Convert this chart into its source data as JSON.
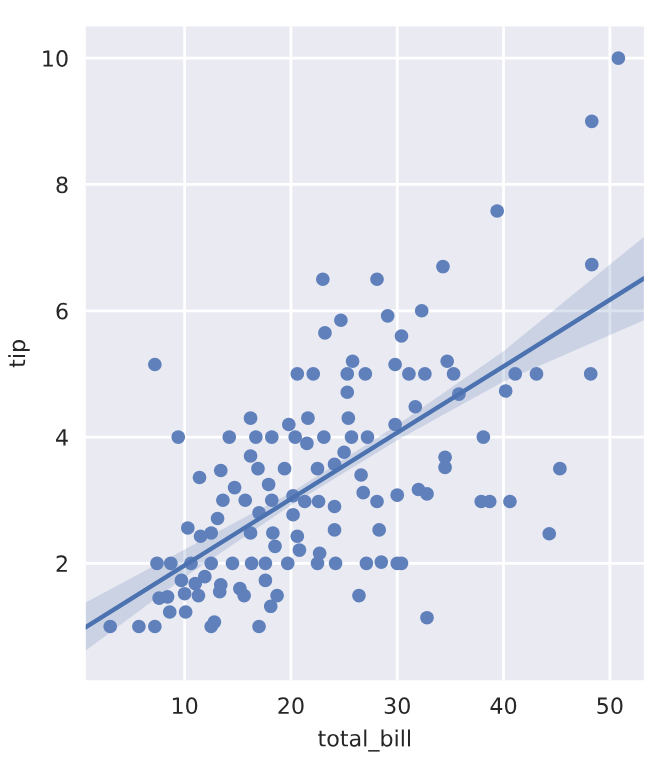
{
  "chart_data": {
    "type": "scatter",
    "xlabel": "total_bill",
    "ylabel": "tip",
    "xlim": [
      0.7,
      53.2
    ],
    "ylim": [
      0.15,
      10.5
    ],
    "xticks": [
      10,
      20,
      30,
      40,
      50
    ],
    "yticks": [
      2,
      4,
      6,
      8,
      10
    ],
    "grid": true,
    "legend": false,
    "series": [
      {
        "color": "#5f80bb",
        "marker": "circle",
        "x": [
          50.8,
          48.3,
          39.4,
          48.3,
          23.0,
          28.1,
          34.3,
          32.3,
          29.1,
          24.7,
          23.2,
          30.4,
          7.2,
          25.8,
          29.8,
          34.7,
          20.6,
          22.1,
          25.3,
          27.0,
          31.1,
          32.6,
          35.3,
          41.1,
          43.1,
          48.2,
          25.3,
          40.2,
          35.8,
          31.7,
          16.2,
          21.6,
          25.4,
          19.8,
          9.4,
          14.2,
          16.7,
          18.2,
          20.4,
          23.1,
          25.7,
          27.2,
          29.8,
          38.1,
          21.5,
          16.2,
          34.5,
          34.5,
          45.3,
          13.4,
          16.9,
          19.4,
          22.5,
          24.1,
          25.0,
          11.4,
          26.6,
          17.9,
          14.7,
          13.6,
          15.7,
          18.2,
          20.2,
          21.3,
          22.6,
          26.8,
          28.1,
          30.0,
          32.0,
          32.8,
          37.9,
          38.7,
          40.6,
          24.1,
          17.0,
          20.2,
          10.3,
          13.1,
          12.5,
          16.2,
          18.3,
          24.1,
          28.3,
          44.3,
          11.5,
          20.6,
          18.5,
          20.8,
          7.4,
          8.7,
          10.6,
          12.5,
          14.5,
          16.3,
          17.6,
          19.7,
          22.5,
          24.2,
          27.1,
          28.5,
          30.0,
          30.4,
          22.7,
          9.7,
          17.6,
          13.4,
          7.6,
          8.4,
          10.0,
          11.3,
          13.3,
          15.2,
          15.6,
          18.7,
          26.4,
          18.1,
          8.6,
          10.1,
          12.8,
          3.0,
          5.7,
          7.2,
          12.5,
          17.0,
          32.8,
          11.0,
          11.9
        ],
        "values": [
          10.0,
          9.0,
          7.58,
          6.73,
          6.5,
          6.5,
          6.7,
          6.0,
          5.92,
          5.85,
          5.65,
          5.6,
          5.15,
          5.2,
          5.15,
          5.2,
          5.0,
          5.0,
          5.0,
          5.0,
          5.0,
          5.0,
          5.0,
          5.0,
          5.0,
          5.0,
          4.71,
          4.73,
          4.68,
          4.48,
          4.3,
          4.3,
          4.3,
          4.2,
          4.0,
          4.0,
          4.0,
          4.0,
          4.0,
          4.0,
          4.0,
          4.0,
          4.2,
          4.0,
          3.9,
          3.7,
          3.68,
          3.52,
          3.5,
          3.47,
          3.5,
          3.5,
          3.5,
          3.57,
          3.76,
          3.36,
          3.4,
          3.25,
          3.2,
          3.0,
          3.0,
          3.0,
          3.07,
          2.98,
          2.98,
          3.12,
          2.98,
          3.08,
          3.17,
          3.1,
          2.98,
          2.98,
          2.98,
          2.9,
          2.8,
          2.77,
          2.56,
          2.71,
          2.48,
          2.48,
          2.48,
          2.53,
          2.53,
          2.47,
          2.43,
          2.43,
          2.27,
          2.21,
          2.0,
          2.0,
          2.0,
          2.0,
          2.0,
          2.0,
          2.0,
          2.0,
          2.0,
          2.0,
          2.0,
          2.02,
          2.0,
          2.0,
          2.16,
          1.73,
          1.73,
          1.66,
          1.45,
          1.47,
          1.52,
          1.49,
          1.55,
          1.6,
          1.49,
          1.49,
          1.49,
          1.32,
          1.23,
          1.23,
          1.07,
          1.0,
          1.0,
          1.0,
          1.0,
          1.0,
          1.14,
          1.68,
          1.79
        ]
      },
      {
        "type": "line",
        "color": "#4c72b0",
        "marker": "none",
        "line_style": "solid",
        "x": [
          0.7,
          10,
          20,
          30,
          40,
          53.2
        ],
        "values": [
          0.99,
          1.97,
          3.02,
          4.07,
          5.12,
          6.51
        ],
        "lower": [
          0.62,
          1.78,
          2.92,
          3.95,
          4.88,
          5.85
        ],
        "upper": [
          1.38,
          2.22,
          3.12,
          4.19,
          5.36,
          7.17
        ]
      }
    ]
  }
}
